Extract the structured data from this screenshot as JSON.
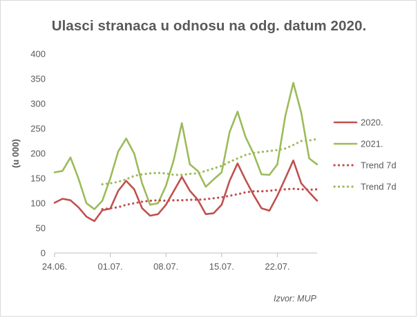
{
  "chart_data": {
    "type": "line",
    "title": "Ulasci stranaca u odnosu na odg. datum 2020.",
    "ylabel": "(u 000)",
    "xlabel": "",
    "ylim": [
      0,
      400
    ],
    "yticks": [
      0,
      50,
      100,
      150,
      200,
      250,
      300,
      350,
      400
    ],
    "x_tick_labels": [
      "24.06.",
      "01.07.",
      "08.07.",
      "15.07.",
      "22.07."
    ],
    "x_tick_days": [
      0,
      7,
      14,
      21,
      28
    ],
    "grid": false,
    "legend_position": "right",
    "series": [
      {
        "name": "2020.",
        "style": "solid",
        "color": "#c0504d",
        "x": [
          0,
          1,
          2,
          3,
          4,
          5,
          6,
          7,
          8,
          9,
          10,
          11,
          12,
          13,
          14,
          15,
          16,
          17,
          18,
          19,
          20,
          21,
          22,
          23,
          24,
          25,
          26,
          27,
          28,
          29,
          30,
          31,
          32,
          33,
          34
        ],
        "values": [
          101,
          109,
          106,
          92,
          73,
          64,
          86,
          89,
          125,
          145,
          128,
          90,
          75,
          78,
          97,
          125,
          153,
          125,
          107,
          78,
          80,
          97,
          145,
          180,
          147,
          117,
          90,
          85,
          115,
          150,
          186,
          140,
          122,
          105,
          null
        ]
      },
      {
        "name": "2021.",
        "style": "solid",
        "color": "#9bbb59",
        "x": [
          0,
          1,
          2,
          3,
          4,
          5,
          6,
          7,
          8,
          9,
          10,
          11,
          12,
          13,
          14,
          15,
          16,
          17,
          18,
          19,
          20,
          21,
          22,
          23,
          24,
          25,
          26,
          27,
          28,
          29,
          30,
          31,
          32,
          33
        ],
        "values": [
          162,
          165,
          192,
          150,
          100,
          88,
          105,
          150,
          204,
          230,
          200,
          140,
          97,
          100,
          135,
          188,
          261,
          178,
          165,
          133,
          148,
          162,
          243,
          284,
          233,
          200,
          158,
          157,
          178,
          275,
          342,
          282,
          190,
          178
        ]
      },
      {
        "name": "Trend 7d",
        "style": "dotted",
        "color": "#c0504d",
        "x": [
          6,
          7,
          8,
          9,
          10,
          11,
          12,
          13,
          14,
          15,
          16,
          17,
          18,
          19,
          20,
          21,
          22,
          23,
          24,
          25,
          26,
          27,
          28,
          29,
          30,
          31,
          32,
          33
        ],
        "values": [
          88,
          90,
          92,
          97,
          100,
          103,
          105,
          106,
          105,
          106,
          106,
          107,
          107,
          108,
          110,
          112,
          115,
          118,
          122,
          124,
          124,
          125,
          127,
          128,
          129,
          128,
          127,
          128
        ]
      },
      {
        "name": "Trend 7d",
        "style": "dotted",
        "color": "#9bbb59",
        "x": [
          6,
          7,
          8,
          9,
          10,
          11,
          12,
          13,
          14,
          15,
          16,
          17,
          18,
          19,
          20,
          21,
          22,
          23,
          24,
          25,
          26,
          27,
          28,
          29,
          30,
          31,
          32,
          33
        ],
        "values": [
          138,
          140,
          143,
          148,
          155,
          158,
          160,
          161,
          160,
          157,
          157,
          159,
          160,
          165,
          170,
          175,
          183,
          190,
          197,
          201,
          203,
          205,
          207,
          210,
          217,
          225,
          226,
          229
        ]
      }
    ]
  },
  "source_note": "Izvor:  MUP"
}
